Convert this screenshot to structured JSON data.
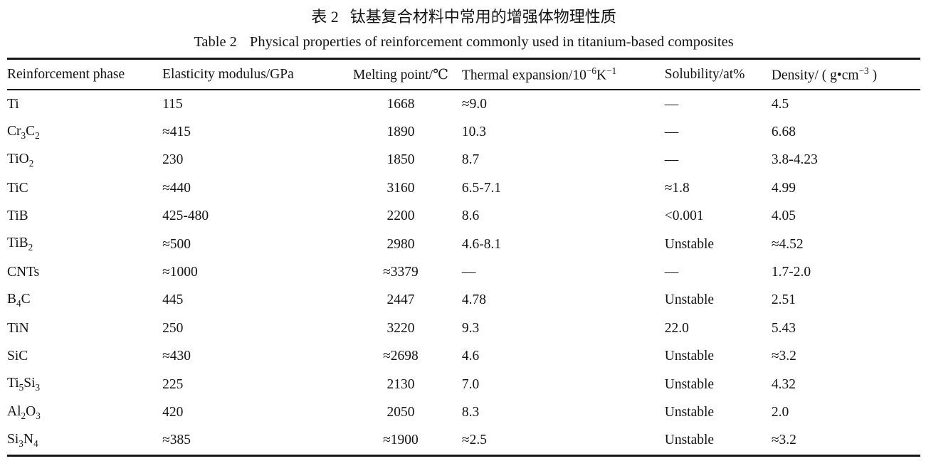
{
  "caption": {
    "chinese_label": "表 2",
    "chinese_text": "钛基复合材料中常用的增强体物理性质",
    "english_label": "Table 2",
    "english_text": "Physical properties of reinforcement commonly used in titanium-based composites"
  },
  "colors": {
    "background": "#ffffff",
    "text": "#141414",
    "rule": "#161616"
  },
  "table": {
    "headers": [
      "Reinforcement phase",
      "Elasticity modulus/GPa",
      "Melting point/℃",
      "Thermal expansion/10^−6^K^−1^",
      "Solubility/at%",
      "Density/ ( g•cm^−3^ )"
    ],
    "column_keys": [
      "reinforcement-phase",
      "elasticity-modulus",
      "melting-point",
      "thermal-expansion",
      "solubility",
      "density"
    ],
    "rows": [
      [
        "Ti",
        "115",
        "1668",
        "≈9.0",
        "—",
        "4.5"
      ],
      [
        "Cr~3~C~2~",
        "≈415",
        "1890",
        "10.3",
        "—",
        "6.68"
      ],
      [
        "TiO~2~",
        "230",
        "1850",
        "8.7",
        "—",
        "3.8-4.23"
      ],
      [
        "TiC",
        "≈440",
        "3160",
        "6.5-7.1",
        "≈1.8",
        "4.99"
      ],
      [
        "TiB",
        "425-480",
        "2200",
        "8.6",
        "<0.001",
        "4.05"
      ],
      [
        "TiB~2~",
        "≈500",
        "2980",
        "4.6-8.1",
        "Unstable",
        "≈4.52"
      ],
      [
        "CNTs",
        "≈1000",
        "≈3379",
        "—",
        "—",
        "1.7-2.0"
      ],
      [
        "B~4~C",
        "445",
        "2447",
        "4.78",
        "Unstable",
        "2.51"
      ],
      [
        "TiN",
        "250",
        "3220",
        "9.3",
        "22.0",
        "5.43"
      ],
      [
        "SiC",
        "≈430",
        "≈2698",
        "4.6",
        "Unstable",
        "≈3.2"
      ],
      [
        "Ti~5~Si~3~",
        "225",
        "2130",
        "7.0",
        "Unstable",
        "4.32"
      ],
      [
        "Al~2~O~3~",
        "420",
        "2050",
        "8.3",
        "Unstable",
        "2.0"
      ],
      [
        "Si~3~N~4~",
        "≈385",
        "≈1900",
        "≈2.5",
        "Unstable",
        "≈3.2"
      ]
    ]
  }
}
